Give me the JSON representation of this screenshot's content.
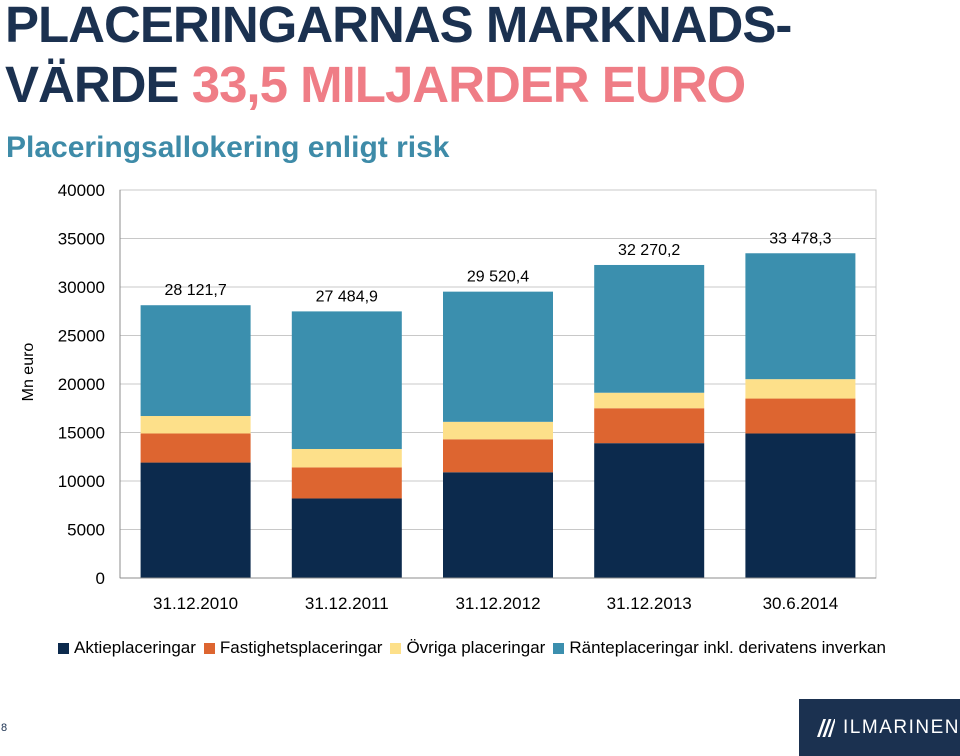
{
  "title": {
    "line1": "PLACERINGARNAS MARKNADS-",
    "line2_main": "VÄRDE ",
    "line2_accent": "33,5 MILJARDER EURO"
  },
  "subtitle": "Placeringsallokering enligt risk",
  "page_number": "8",
  "logo": {
    "text": "ILMARINEN",
    "mark": "ilmarinen-logo-icon"
  },
  "colors": {
    "title": "#1b3150",
    "accent": "#ef7d86",
    "subtitle": "#3e8ba8",
    "aktie": "#0c2a4d",
    "fastighet": "#dd6530",
    "ovriga": "#fde08a",
    "ranta": "#3b8fae",
    "logo_bg": "#1b3150"
  },
  "chart_data": {
    "type": "bar",
    "stacked": true,
    "ylabel": "Mn euro",
    "ylim": [
      0,
      40000
    ],
    "yticks": [
      "0",
      "5000",
      "10000",
      "15000",
      "20000",
      "25000",
      "30000",
      "35000",
      "40000"
    ],
    "categories": [
      "31.12.2010",
      "31.12.2011",
      "31.12.2012",
      "31.12.2013",
      "30.6.2014"
    ],
    "series": [
      {
        "name": "Aktieplaceringar",
        "color": "#0c2a4d",
        "values": [
          11900,
          8200,
          10900,
          13900,
          14900
        ]
      },
      {
        "name": "Fastighetsplaceringar",
        "color": "#dd6530",
        "values": [
          3000,
          3200,
          3400,
          3600,
          3600
        ]
      },
      {
        "name": "Övriga placeringar",
        "color": "#fde08a",
        "values": [
          1800,
          1900,
          1800,
          1600,
          2000
        ]
      },
      {
        "name": "Ränteplaceringar inkl. derivatens inverkan",
        "color": "#3b8fae",
        "values": [
          11421.7,
          14184.9,
          13420.4,
          13170.2,
          12978.3
        ]
      }
    ],
    "totals": [
      28121.7,
      27484.9,
      29520.4,
      32270.2,
      33478.3
    ],
    "total_labels": [
      "28 121,7",
      "27 484,9",
      "29 520,4",
      "32 270,2",
      "33 478,3"
    ],
    "grid": true,
    "legend_position": "bottom"
  }
}
